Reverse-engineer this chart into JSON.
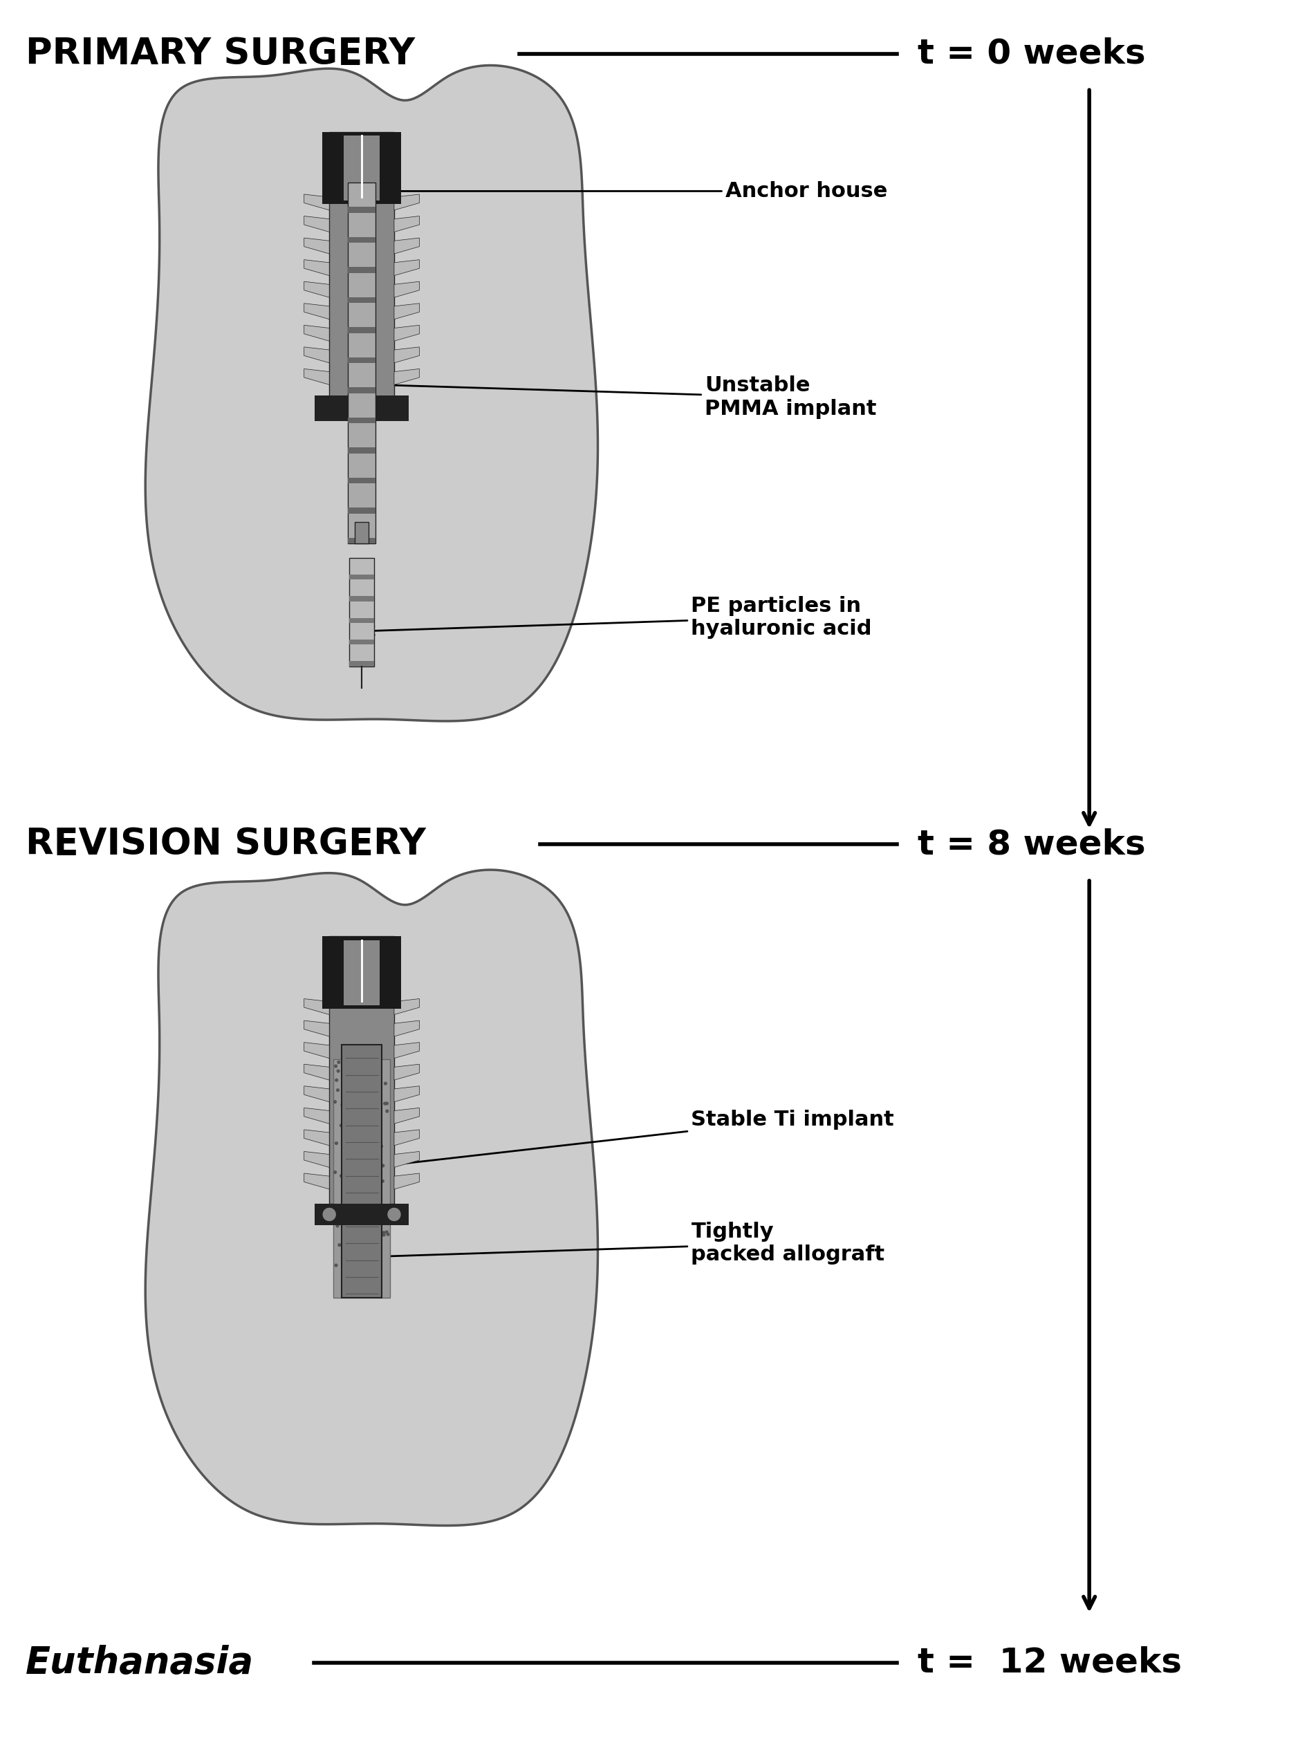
{
  "bg_color": "#ffffff",
  "title1": "PRIMARY SURGERY",
  "title2": "REVISION SURGERY",
  "title3": "Euthanasia",
  "time1": "t = 0 weeks",
  "time2": "t = 8 weeks",
  "time3": "t =  12 weeks",
  "label_anchor": "Anchor house",
  "label_unstable": "Unstable\nPMMA implant",
  "label_pe": "PE particles in\nhyaluronic acid",
  "label_stable": "Stable Ti implant",
  "label_allograft": "Tightly\npacked allograft",
  "arrow_color": "#000000",
  "text_color": "#000000",
  "bone_color": "#cccccc",
  "bone_outline": "#555555",
  "implant_dark": "#222222",
  "implant_mid": "#888888",
  "implant_light": "#bbbbbb"
}
